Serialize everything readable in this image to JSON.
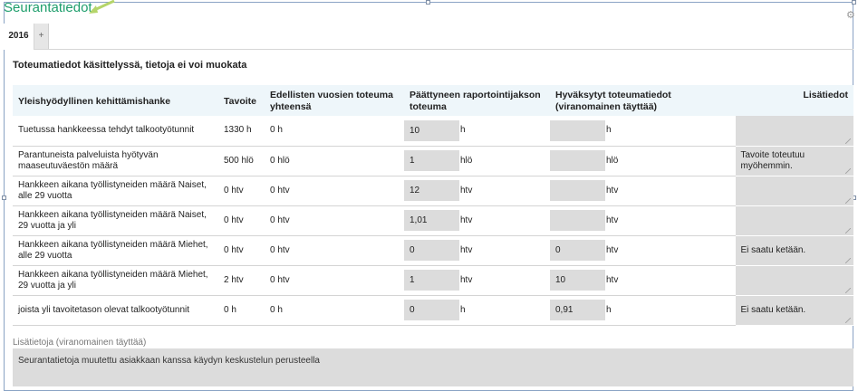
{
  "app": {
    "title": "Seurantatiedot",
    "settings_icon": "gear-icon",
    "accent_color": "#1e9e6c"
  },
  "tabs": {
    "items": [
      {
        "label": "2016"
      },
      {
        "label": "+"
      }
    ]
  },
  "section": {
    "title": "Toteumatiedot käsittelyssä, tietoja ei voi muokata"
  },
  "table": {
    "headers": {
      "indicator": "Yleishyödyllinen kehittämishanke",
      "target": "Tavoite",
      "previous": "Edellisten vuosien toteuma yhteensä",
      "period": "Päättyneen raportointijakson toteuma",
      "approved": "Hyväksytyt toteumatiedot (viranomainen täyttää)",
      "notes": "Lisätiedot"
    },
    "rows": [
      {
        "name": "Tuetussa hankkeessa tehdyt talkootyötunnit",
        "target": "1330 h",
        "previous": "0 h",
        "period": "10",
        "period_unit": "h",
        "approved": "",
        "approved_unit": "h",
        "notes": ""
      },
      {
        "name": "Parantuneista palveluista hyötyvän maaseutuväestön määrä",
        "target": "500 hlö",
        "previous": "0 hlö",
        "period": "1",
        "period_unit": "hlö",
        "approved": "",
        "approved_unit": "hlö",
        "notes": "Tavoite toteutuu myöhemmin."
      },
      {
        "name": "Hankkeen aikana työllistyneiden määrä Naiset, alle 29 vuotta",
        "target": "0 htv",
        "previous": "0 htv",
        "period": "12",
        "period_unit": "htv",
        "approved": "",
        "approved_unit": "htv",
        "notes": ""
      },
      {
        "name": "Hankkeen aikana työllistyneiden määrä Naiset, 29 vuotta ja yli",
        "target": "0 htv",
        "previous": "0 htv",
        "period": "1,01",
        "period_unit": "htv",
        "approved": "",
        "approved_unit": "htv",
        "notes": ""
      },
      {
        "name": "Hankkeen aikana työllistyneiden määrä Miehet, alle 29 vuotta",
        "target": "0 htv",
        "previous": "0 htv",
        "period": "0",
        "period_unit": "htv",
        "approved": "0",
        "approved_unit": "htv",
        "notes": "Ei saatu ketään."
      },
      {
        "name": "Hankkeen aikana työllistyneiden määrä Miehet, 29 vuotta ja yli",
        "target": "2 htv",
        "previous": "0 htv",
        "period": "1",
        "period_unit": "htv",
        "approved": "10",
        "approved_unit": "htv",
        "notes": ""
      },
      {
        "name": "joista yli tavoitetason olevat talkootyötunnit",
        "target": "0 h",
        "previous": "0 h",
        "period": "0",
        "period_unit": "h",
        "approved": "0,91",
        "approved_unit": "h",
        "notes": "Ei saatu ketään."
      }
    ]
  },
  "extra_info": {
    "label": "Lisätietoja (viranomainen täyttää)",
    "value": "Seurantatietoja muutettu asiakkaan kanssa käydyn keskustelun perusteella"
  }
}
